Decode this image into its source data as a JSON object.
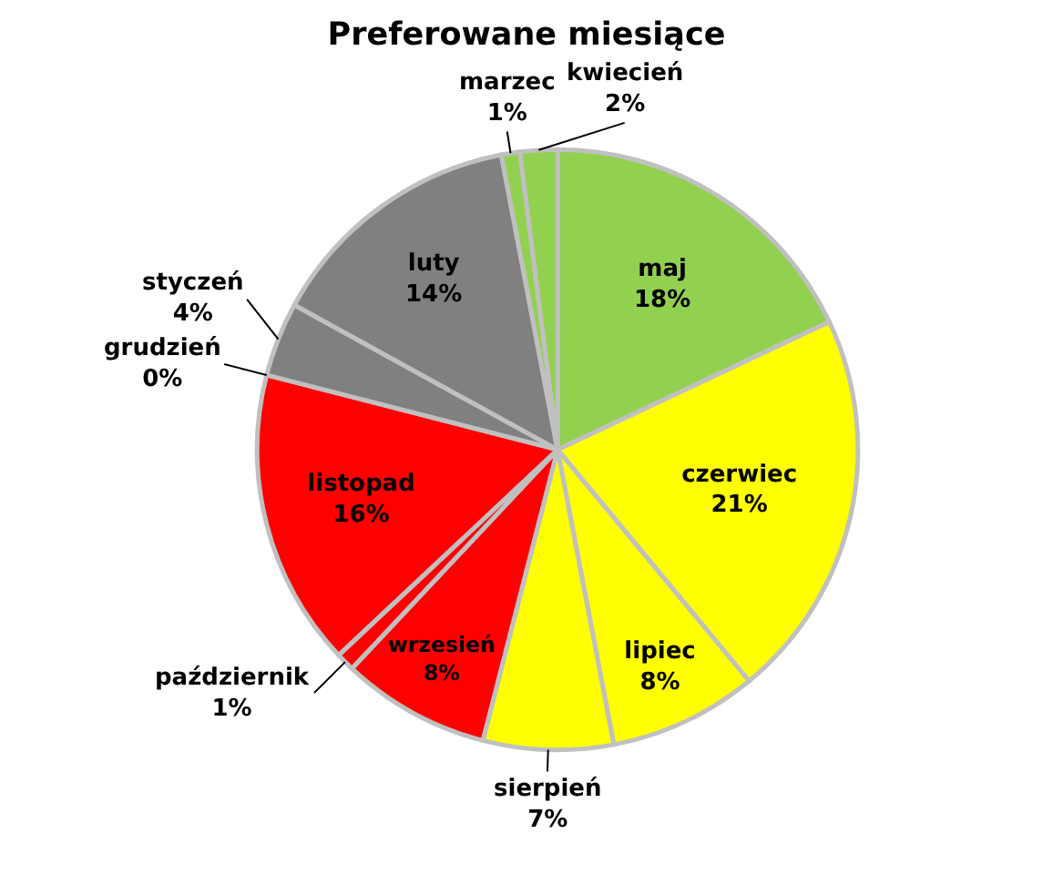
{
  "chart_data": {
    "type": "pie",
    "title": "Preferowane miesiące",
    "categories": [
      "maj",
      "czerwiec",
      "lipiec",
      "sierpień",
      "wrzesień",
      "październik",
      "listopad",
      "grudzień",
      "styczeń",
      "luty",
      "marzec",
      "kwiecień"
    ],
    "values": [
      18,
      21,
      8,
      7,
      8,
      1,
      16,
      0,
      4,
      14,
      1,
      2
    ],
    "value_labels": [
      "18%",
      "21%",
      "8%",
      "7%",
      "8%",
      "1%",
      "16%",
      "0%",
      "4%",
      "14%",
      "1%",
      "2%"
    ],
    "colors": [
      "#92d050",
      "#ffff00",
      "#ffff00",
      "#ffff00",
      "#ff0000",
      "#ff0000",
      "#ff0000",
      "#808080",
      "#808080",
      "#808080",
      "#92d050",
      "#92d050"
    ],
    "legend": false
  }
}
